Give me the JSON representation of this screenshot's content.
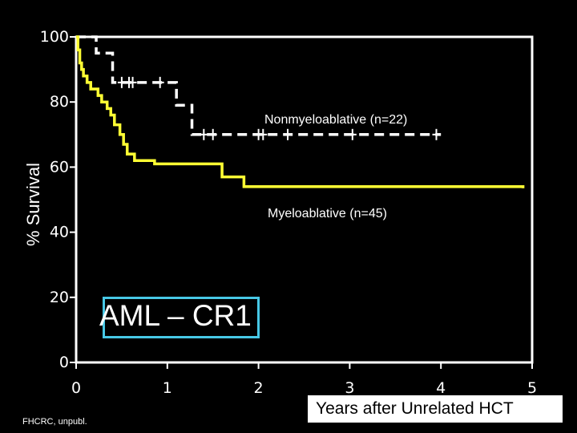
{
  "chart_data": {
    "type": "line",
    "subtype": "kaplan-meier step",
    "ylabel": "% Survival",
    "xlabel": "Years after  Unrelated  HCT",
    "x_ticks": [
      0,
      1,
      2,
      3,
      4,
      5
    ],
    "y_ticks": [
      0,
      20,
      40,
      60,
      80,
      100
    ],
    "xlim": [
      0,
      5
    ],
    "ylim": [
      0,
      100
    ],
    "grid": false,
    "series": [
      {
        "name": "Nonmyeloablative (n=22)",
        "color": "#ffffff",
        "style": "dashed",
        "steps": [
          [
            0,
            100
          ],
          [
            0.22,
            100
          ],
          [
            0.22,
            95
          ],
          [
            0.4,
            95
          ],
          [
            0.4,
            86
          ],
          [
            1.1,
            86
          ],
          [
            1.1,
            79
          ],
          [
            1.27,
            79
          ],
          [
            1.27,
            70
          ],
          [
            4.0,
            70
          ]
        ],
        "censor_marks": [
          [
            0.5,
            86
          ],
          [
            0.58,
            86
          ],
          [
            0.62,
            86
          ],
          [
            0.92,
            86
          ],
          [
            1.4,
            70
          ],
          [
            1.5,
            70
          ],
          [
            2.0,
            70
          ],
          [
            2.05,
            70
          ],
          [
            2.32,
            70
          ],
          [
            3.03,
            70
          ],
          [
            3.95,
            70
          ]
        ]
      },
      {
        "name": "Myeloablative (n=45)",
        "color": "#ffff33",
        "style": "solid",
        "steps": [
          [
            0,
            100
          ],
          [
            0.02,
            96
          ],
          [
            0.04,
            92
          ],
          [
            0.06,
            90
          ],
          [
            0.08,
            88
          ],
          [
            0.12,
            86
          ],
          [
            0.16,
            84
          ],
          [
            0.24,
            82
          ],
          [
            0.28,
            80
          ],
          [
            0.34,
            78
          ],
          [
            0.38,
            76
          ],
          [
            0.42,
            73
          ],
          [
            0.48,
            70
          ],
          [
            0.52,
            67
          ],
          [
            0.56,
            64
          ],
          [
            0.64,
            62
          ],
          [
            0.86,
            61
          ],
          [
            1.55,
            61
          ],
          [
            1.6,
            57
          ],
          [
            1.84,
            57
          ],
          [
            1.84,
            54
          ],
          [
            4.0,
            54
          ],
          [
            4.9,
            53.5
          ]
        ],
        "censor_marks": []
      }
    ],
    "series_label_positions": [
      "above line right",
      "below line right"
    ],
    "inset_label": "AML – CR1",
    "source_note": "FHCRC, unpubl."
  }
}
